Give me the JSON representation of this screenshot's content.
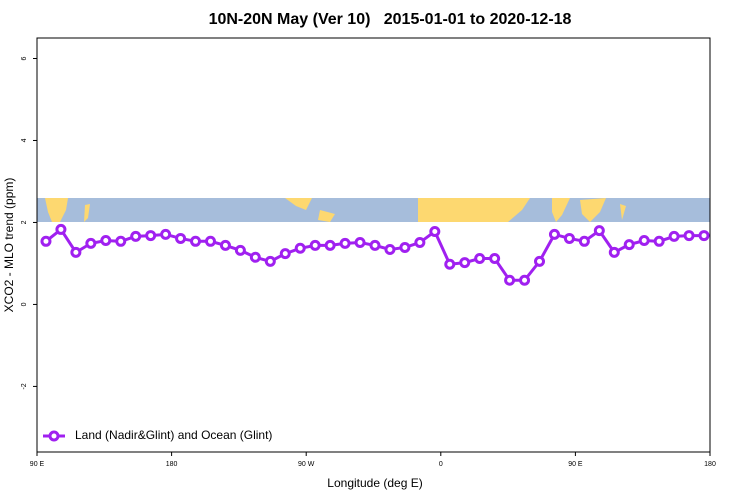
{
  "chart_data": {
    "type": "line",
    "title": "10N-20N May (Ver 10)   2015-01-01 to 2020-12-18",
    "x_label": "Longitude (deg E)",
    "y_label": "XCO2 - MLO trend (ppm)",
    "x": [
      96,
      106,
      116,
      126,
      136,
      146,
      156,
      166,
      176,
      186,
      196,
      206,
      216,
      226,
      236,
      246,
      256,
      266,
      276,
      286,
      296,
      306,
      316,
      326,
      336,
      346,
      356,
      366,
      376,
      386,
      396,
      406,
      416,
      426,
      436,
      446,
      456,
      466,
      476,
      486,
      496,
      506,
      516,
      526,
      536
    ],
    "series": [
      {
        "name": "Land (Nadir&Glint) and Ocean (Glint)",
        "color": "#a020f0",
        "values": [
          1.54,
          1.83,
          1.27,
          1.49,
          1.56,
          1.54,
          1.66,
          1.68,
          1.71,
          1.61,
          1.54,
          1.54,
          1.44,
          1.32,
          1.15,
          1.05,
          1.24,
          1.37,
          1.44,
          1.44,
          1.49,
          1.51,
          1.44,
          1.34,
          1.39,
          1.51,
          1.78,
          0.98,
          1.02,
          1.12,
          1.12,
          0.59,
          0.59,
          1.05,
          1.71,
          1.61,
          1.54,
          1.8,
          1.27,
          1.46,
          1.56,
          1.54,
          1.66,
          1.68,
          1.68
        ]
      }
    ],
    "xlim": [
      90,
      540
    ],
    "xticks": [
      {
        "value": 90,
        "label": "90 E"
      },
      {
        "value": 180,
        "label": "180"
      },
      {
        "value": 270,
        "label": "90 W"
      },
      {
        "value": 360,
        "label": "0"
      },
      {
        "value": 450,
        "label": "90 E"
      },
      {
        "value": 540,
        "label": "180"
      }
    ],
    "ylim": [
      -3.6,
      6.5
    ],
    "yticks": [
      -2,
      0,
      2,
      4,
      6
    ],
    "legend": "bottom-left",
    "grid": false
  }
}
